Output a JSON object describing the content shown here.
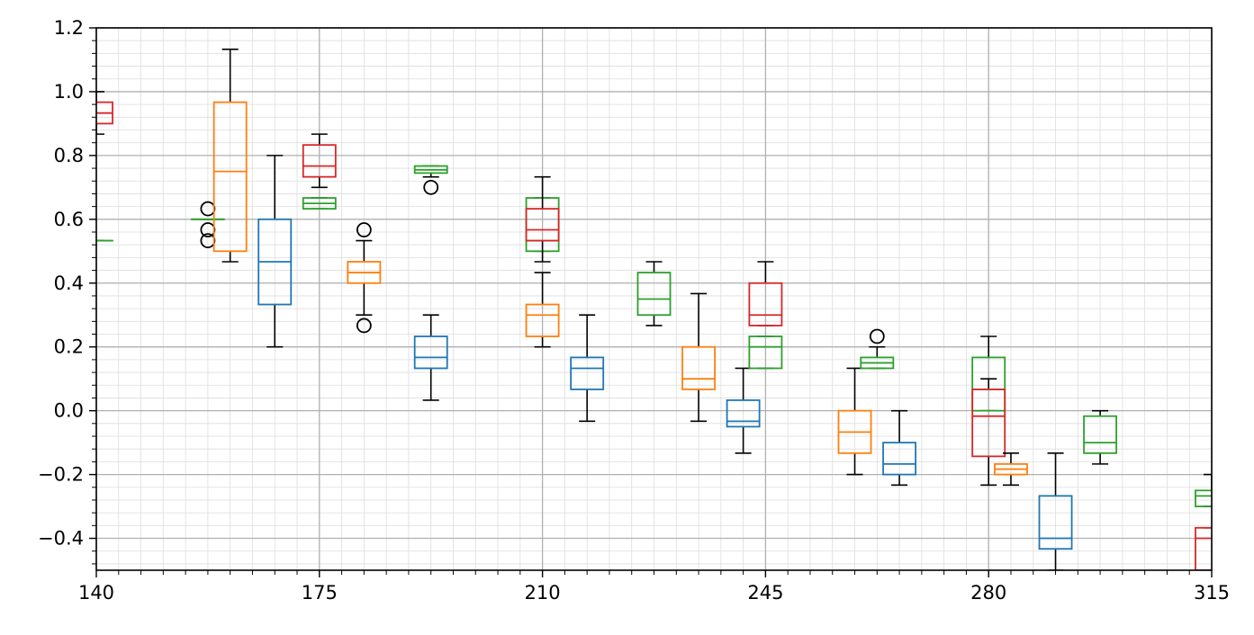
{
  "chart_data": {
    "type": "box",
    "title": "",
    "xlabel": "",
    "ylabel": "",
    "xlim": [
      140,
      315
    ],
    "ylim": [
      -0.5,
      1.2
    ],
    "xticks": [
      "140",
      "175",
      "210",
      "245",
      "280",
      "315"
    ],
    "xtick_values": [
      140,
      175,
      210,
      245,
      280,
      315
    ],
    "yticks": [
      "−0.4",
      "−0.2",
      "0.0",
      "0.2",
      "0.4",
      "0.6",
      "0.8",
      "1.0",
      "1.2"
    ],
    "ytick_values": [
      -0.4,
      -0.2,
      0.0,
      0.2,
      0.4,
      0.6,
      0.8,
      1.0,
      1.2
    ],
    "grid": "major and minor",
    "colors": {
      "blue": "#1f77b4",
      "orange": "#ff7f0e",
      "green": "#2ca02c",
      "red": "#d62728",
      "whisker": "#000000",
      "grid_major": "#b0b0b0",
      "grid_minor": "#dddddd"
    },
    "boxes": [
      {
        "x": 140.0,
        "color": "green",
        "whislo": 0.533,
        "q1": 0.533,
        "med": 0.533,
        "q3": 0.533,
        "whishi": 0.533,
        "fliers": []
      },
      {
        "x": 140.0,
        "color": "red",
        "whislo": 0.867,
        "q1": 0.9,
        "med": 0.933,
        "q3": 0.967,
        "whishi": 1.0,
        "fliers": []
      },
      {
        "x": 157.5,
        "color": "green",
        "whislo": 0.6,
        "q1": 0.6,
        "med": 0.6,
        "q3": 0.6,
        "whishi": 0.6,
        "fliers": [
          0.533,
          0.567,
          0.633
        ]
      },
      {
        "x": 161.0,
        "color": "orange",
        "whislo": 0.467,
        "q1": 0.5,
        "med": 0.75,
        "q3": 0.967,
        "whishi": 1.133,
        "fliers": []
      },
      {
        "x": 168.0,
        "color": "blue",
        "whislo": 0.2,
        "q1": 0.333,
        "med": 0.467,
        "q3": 0.6,
        "whishi": 0.8,
        "fliers": []
      },
      {
        "x": 175.0,
        "color": "green",
        "whislo": 0.633,
        "q1": 0.633,
        "med": 0.65,
        "q3": 0.667,
        "whishi": 0.667,
        "fliers": []
      },
      {
        "x": 175.0,
        "color": "red",
        "whislo": 0.7,
        "q1": 0.733,
        "med": 0.767,
        "q3": 0.833,
        "whishi": 0.867,
        "fliers": []
      },
      {
        "x": 182.0,
        "color": "orange",
        "whislo": 0.3,
        "q1": 0.4,
        "med": 0.433,
        "q3": 0.467,
        "whishi": 0.533,
        "fliers": [
          0.267,
          0.567
        ]
      },
      {
        "x": 192.5,
        "color": "green",
        "whislo": 0.733,
        "q1": 0.745,
        "med": 0.755,
        "q3": 0.767,
        "whishi": 0.767,
        "fliers": [
          0.7
        ]
      },
      {
        "x": 192.5,
        "color": "blue",
        "whislo": 0.033,
        "q1": 0.133,
        "med": 0.167,
        "q3": 0.233,
        "whishi": 0.3,
        "fliers": []
      },
      {
        "x": 210.0,
        "color": "green",
        "whislo": 0.5,
        "q1": 0.5,
        "med": 0.533,
        "q3": 0.667,
        "whishi": 0.667,
        "fliers": []
      },
      {
        "x": 210.0,
        "color": "red",
        "whislo": 0.467,
        "q1": 0.533,
        "med": 0.567,
        "q3": 0.633,
        "whishi": 0.733,
        "fliers": []
      },
      {
        "x": 210.0,
        "color": "orange",
        "whislo": 0.2,
        "q1": 0.233,
        "med": 0.3,
        "q3": 0.333,
        "whishi": 0.433,
        "fliers": []
      },
      {
        "x": 217.0,
        "color": "blue",
        "whislo": -0.033,
        "q1": 0.067,
        "med": 0.133,
        "q3": 0.167,
        "whishi": 0.3,
        "fliers": []
      },
      {
        "x": 227.5,
        "color": "green",
        "whislo": 0.267,
        "q1": 0.3,
        "med": 0.35,
        "q3": 0.433,
        "whishi": 0.467,
        "fliers": []
      },
      {
        "x": 234.5,
        "color": "orange",
        "whislo": -0.033,
        "q1": 0.067,
        "med": 0.1,
        "q3": 0.2,
        "whishi": 0.367,
        "fliers": []
      },
      {
        "x": 241.5,
        "color": "blue",
        "whislo": -0.133,
        "q1": -0.05,
        "med": -0.033,
        "q3": 0.033,
        "whishi": 0.133,
        "fliers": []
      },
      {
        "x": 245.0,
        "color": "green",
        "whislo": 0.133,
        "q1": 0.133,
        "med": 0.2,
        "q3": 0.233,
        "whishi": 0.233,
        "fliers": []
      },
      {
        "x": 245.0,
        "color": "red",
        "whislo": 0.267,
        "q1": 0.267,
        "med": 0.3,
        "q3": 0.4,
        "whishi": 0.467,
        "fliers": []
      },
      {
        "x": 259.0,
        "color": "orange",
        "whislo": -0.2,
        "q1": -0.133,
        "med": -0.067,
        "q3": 0.0,
        "whishi": 0.133,
        "fliers": []
      },
      {
        "x": 262.5,
        "color": "green",
        "whislo": 0.133,
        "q1": 0.133,
        "med": 0.15,
        "q3": 0.167,
        "whishi": 0.2,
        "fliers": [
          0.233
        ]
      },
      {
        "x": 266.0,
        "color": "blue",
        "whislo": -0.233,
        "q1": -0.2,
        "med": -0.167,
        "q3": -0.1,
        "whishi": 0.0,
        "fliers": []
      },
      {
        "x": 280.0,
        "color": "green",
        "whislo": 0.0,
        "q1": 0.0,
        "med": 0.067,
        "q3": 0.167,
        "whishi": 0.233,
        "fliers": []
      },
      {
        "x": 280.0,
        "color": "red",
        "whislo": -0.233,
        "q1": -0.143,
        "med": -0.017,
        "q3": 0.067,
        "whishi": 0.1,
        "fliers": []
      },
      {
        "x": 283.5,
        "color": "orange",
        "whislo": -0.233,
        "q1": -0.2,
        "med": -0.183,
        "q3": -0.167,
        "whishi": -0.133,
        "fliers": []
      },
      {
        "x": 290.5,
        "color": "blue",
        "whislo": -0.5,
        "q1": -0.433,
        "med": -0.4,
        "q3": -0.267,
        "whishi": -0.133,
        "fliers": []
      },
      {
        "x": 297.5,
        "color": "green",
        "whislo": -0.167,
        "q1": -0.133,
        "med": -0.1,
        "q3": -0.017,
        "whishi": 0.0,
        "fliers": []
      },
      {
        "x": 315.0,
        "color": "green",
        "whislo": -0.3,
        "q1": -0.3,
        "med": -0.267,
        "q3": -0.25,
        "whishi": -0.2,
        "fliers": []
      },
      {
        "x": 315.0,
        "color": "red",
        "whislo": -0.5,
        "q1": -0.5,
        "med": -0.4,
        "q3": -0.367,
        "whishi": -0.367,
        "fliers": []
      }
    ]
  }
}
